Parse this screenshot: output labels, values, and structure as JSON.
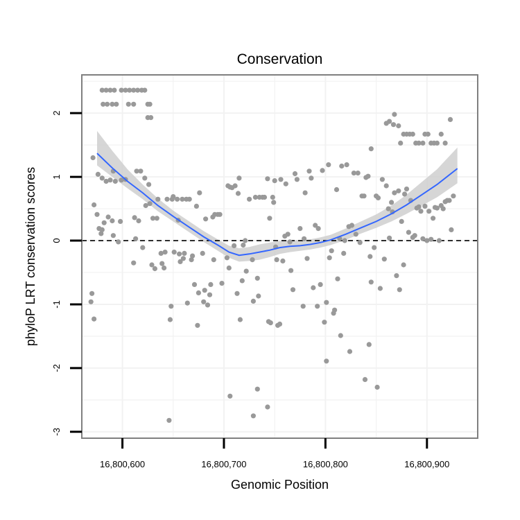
{
  "chart_data": {
    "type": "scatter",
    "title": "Conservation",
    "xlabel": "Genomic Position",
    "ylabel": "phyloP LRT conservation scores",
    "xlim": [
      16800560,
      16800950
    ],
    "ylim": [
      -3.1,
      2.6
    ],
    "x_ticks": [
      16800600,
      16800700,
      16800800,
      16800900
    ],
    "x_tick_labels": [
      "16,800,600",
      "16,800,700",
      "16,800,800",
      "16,800,900"
    ],
    "y_ticks": [
      -3,
      -2,
      -1,
      0,
      1,
      2
    ],
    "y_tick_labels": [
      "-3",
      "-2",
      "-1",
      "0",
      "1",
      "2"
    ],
    "grid": true,
    "reference_line": {
      "y": 0,
      "style": "dashed"
    },
    "colors": {
      "points": "#999999",
      "smooth_line": "#3366ff",
      "ribbon": "#cccccc",
      "grid": "#f2f2f2",
      "panel_border": "#7f7f7f"
    },
    "series": [
      {
        "type": "points",
        "points": [
          [
            16800580,
            2.36
          ],
          [
            16800584,
            2.36
          ],
          [
            16800588,
            2.36
          ],
          [
            16800592,
            2.36
          ],
          [
            16800599,
            2.36
          ],
          [
            16800603,
            2.36
          ],
          [
            16800607,
            2.36
          ],
          [
            16800611,
            2.36
          ],
          [
            16800615,
            2.36
          ],
          [
            16800619,
            2.36
          ],
          [
            16800622,
            2.36
          ],
          [
            16800581,
            2.14
          ],
          [
            16800585,
            2.14
          ],
          [
            16800590,
            2.14
          ],
          [
            16800594,
            2.14
          ],
          [
            16800606,
            2.14
          ],
          [
            16800611,
            2.14
          ],
          [
            16800625,
            2.14
          ],
          [
            16800627,
            2.14
          ],
          [
            16800625,
            1.93
          ],
          [
            16800628,
            1.93
          ],
          [
            16800571,
            1.3
          ],
          [
            16800576,
            1.04
          ],
          [
            16800580,
            0.98
          ],
          [
            16800584,
            0.93
          ],
          [
            16800588,
            0.95
          ],
          [
            16800591,
            1.09
          ],
          [
            16800593,
            0.93
          ],
          [
            16800599,
            0.95
          ],
          [
            16800603,
            0.96
          ],
          [
            16800614,
            1.09
          ],
          [
            16800618,
            1.09
          ],
          [
            16800622,
            0.98
          ],
          [
            16800626,
            0.88
          ],
          [
            16800572,
            0.56
          ],
          [
            16800575,
            0.41
          ],
          [
            16800577,
            0.19
          ],
          [
            16800579,
            0.11
          ],
          [
            16800580,
            0.17
          ],
          [
            16800582,
            0.28
          ],
          [
            16800586,
            0.37
          ],
          [
            16800590,
            0.31
          ],
          [
            16800591,
            0.08
          ],
          [
            16800596,
            -0.02
          ],
          [
            16800598,
            0.3
          ],
          [
            16800612,
            0.36
          ],
          [
            16800613,
            0.03
          ],
          [
            16800616,
            0.31
          ],
          [
            16800620,
            -0.11
          ],
          [
            16800623,
            0.55
          ],
          [
            16800627,
            0.58
          ],
          [
            16800570,
            -0.83
          ],
          [
            16800569,
            -0.96
          ],
          [
            16800572,
            -1.23
          ],
          [
            16800611,
            -0.35
          ],
          [
            16800629,
            -0.38
          ],
          [
            16800630,
            0.35
          ],
          [
            16800632,
            -0.44
          ],
          [
            16800634,
            0.35
          ],
          [
            16800635,
            0.65
          ],
          [
            16800638,
            -0.2
          ],
          [
            16800639,
            -0.36
          ],
          [
            16800641,
            -0.43
          ],
          [
            16800642,
            -0.18
          ],
          [
            16800644,
            0.65
          ],
          [
            16800647,
            -1.24
          ],
          [
            16800648,
            -1.03
          ],
          [
            16800649,
            0.65
          ],
          [
            16800650,
            0.69
          ],
          [
            16800651,
            -0.18
          ],
          [
            16800654,
            0.65
          ],
          [
            16800655,
            0.32
          ],
          [
            16800656,
            -0.21
          ],
          [
            16800657,
            -0.33
          ],
          [
            16800659,
            0.65
          ],
          [
            16800660,
            -0.28
          ],
          [
            16800661,
            -0.2
          ],
          [
            16800663,
            0.65
          ],
          [
            16800664,
            -0.98
          ],
          [
            16800666,
            0.65
          ],
          [
            16800668,
            -0.3
          ],
          [
            16800669,
            -0.24
          ],
          [
            16800671,
            -0.69
          ],
          [
            16800673,
            0.54
          ],
          [
            16800674,
            -1.33
          ],
          [
            16800675,
            -0.82
          ],
          [
            16800676,
            0.75
          ],
          [
            16800679,
            -0.2
          ],
          [
            16800680,
            -0.96
          ],
          [
            16800681,
            -0.78
          ],
          [
            16800682,
            0.34
          ],
          [
            16800684,
            -1.01
          ],
          [
            16800686,
            -0.85
          ],
          [
            16800687,
            -0.69
          ],
          [
            16800689,
            0.37
          ],
          [
            16800690,
            -0.3
          ],
          [
            16800691,
            0.41
          ],
          [
            16800694,
            0.41
          ],
          [
            16800696,
            0.41
          ],
          [
            16800698,
            -0.67
          ],
          [
            16800703,
            -0.27
          ],
          [
            16800704,
            0.86
          ],
          [
            16800705,
            -0.43
          ],
          [
            16800706,
            0.84
          ],
          [
            16800708,
            0.83
          ],
          [
            16800710,
            -0.08
          ],
          [
            16800711,
            0.86
          ],
          [
            16800713,
            -0.83
          ],
          [
            16800714,
            0.74
          ],
          [
            16800715,
            0.98
          ],
          [
            16800716,
            -1.24
          ],
          [
            16800718,
            -0.63
          ],
          [
            16800719,
            -0.07
          ],
          [
            16800721,
            0.0
          ],
          [
            16800722,
            -0.48
          ],
          [
            16800725,
            0.65
          ],
          [
            16800728,
            -0.3
          ],
          [
            16800729,
            -0.95
          ],
          [
            16800731,
            0.68
          ],
          [
            16800733,
            -0.59
          ],
          [
            16800734,
            -0.87
          ],
          [
            16800735,
            0.68
          ],
          [
            16800738,
            0.68
          ],
          [
            16800740,
            0.68
          ],
          [
            16800743,
            0.97
          ],
          [
            16800744,
            -1.27
          ],
          [
            16800745,
            0.35
          ],
          [
            16800746,
            -1.29
          ],
          [
            16800748,
            0.68
          ],
          [
            16800749,
            0.6
          ],
          [
            16800750,
            0.94
          ],
          [
            16800751,
            -0.1
          ],
          [
            16800752,
            -0.3
          ],
          [
            16800753,
            -1.33
          ],
          [
            16800755,
            -1.31
          ],
          [
            16800756,
            0.96
          ],
          [
            16800758,
            -0.32
          ],
          [
            16800760,
            0.07
          ],
          [
            16800761,
            0.89
          ],
          [
            16800763,
            0.1
          ],
          [
            16800765,
            -0.02
          ],
          [
            16800766,
            -0.47
          ],
          [
            16800768,
            -0.77
          ],
          [
            16800770,
            1.05
          ],
          [
            16800772,
            0.96
          ],
          [
            16800775,
            0.19
          ],
          [
            16800778,
            -1.03
          ],
          [
            16800779,
            0.03
          ],
          [
            16800780,
            0.75
          ],
          [
            16800782,
            -0.28
          ],
          [
            16800784,
            1.09
          ],
          [
            16800786,
            0.98
          ],
          [
            16800788,
            -0.74
          ],
          [
            16800790,
            0.24
          ],
          [
            16800792,
            -1.03
          ],
          [
            16800793,
            0.19
          ],
          [
            16800795,
            -0.69
          ],
          [
            16800797,
            1.1
          ],
          [
            16800799,
            -1.28
          ],
          [
            16800801,
            -0.97
          ],
          [
            16800803,
            1.19
          ],
          [
            16800804,
            -0.27
          ],
          [
            16800806,
            -0.16
          ],
          [
            16800808,
            -1.14
          ],
          [
            16800809,
            -1.09
          ],
          [
            16800811,
            0.8
          ],
          [
            16800812,
            -0.6
          ],
          [
            16800814,
            0.03
          ],
          [
            16800816,
            1.17
          ],
          [
            16800818,
            -0.2
          ],
          [
            16800819,
            0.0
          ],
          [
            16800821,
            1.19
          ],
          [
            16800823,
            0.22
          ],
          [
            16800826,
            0.24
          ],
          [
            16800828,
            1.06
          ],
          [
            16800830,
            0.1
          ],
          [
            16800832,
            1.06
          ],
          [
            16800834,
            -0.03
          ],
          [
            16800836,
            0.7
          ],
          [
            16800838,
            0.7
          ],
          [
            16800840,
            0.99
          ],
          [
            16800842,
            1.01
          ],
          [
            16800844,
            -0.25
          ],
          [
            16800845,
            -0.65
          ],
          [
            16800848,
            -0.11
          ],
          [
            16800850,
            0.7
          ],
          [
            16800852,
            0.67
          ],
          [
            16800854,
            -0.75
          ],
          [
            16800856,
            0.96
          ],
          [
            16800858,
            -0.29
          ],
          [
            16800860,
            0.86
          ],
          [
            16800862,
            0.5
          ],
          [
            16800863,
            0.04
          ],
          [
            16800865,
            0.6
          ],
          [
            16800866,
            0.45
          ],
          [
            16800868,
            0.75
          ],
          [
            16800870,
            -0.55
          ],
          [
            16800872,
            0.78
          ],
          [
            16800873,
            -0.77
          ],
          [
            16800875,
            0.3
          ],
          [
            16800877,
            -0.38
          ],
          [
            16800878,
            0.73
          ],
          [
            16800880,
            0.81
          ],
          [
            16800882,
            0.13
          ],
          [
            16800884,
            0.63
          ],
          [
            16800886,
            0.05
          ],
          [
            16800888,
            0.08
          ],
          [
            16800890,
            0.51
          ],
          [
            16800892,
            0.53
          ],
          [
            16800894,
            0.46
          ],
          [
            16800896,
            0.03
          ],
          [
            16800898,
            0.54
          ],
          [
            16800900,
            0.0
          ],
          [
            16800902,
            0.46
          ],
          [
            16800904,
            0.02
          ],
          [
            16800906,
            0.35
          ],
          [
            16800908,
            0.52
          ],
          [
            16800910,
            0.51
          ],
          [
            16800912,
            0.0
          ],
          [
            16800914,
            0.55
          ],
          [
            16800916,
            0.5
          ],
          [
            16800918,
            0.61
          ],
          [
            16800920,
            0.63
          ],
          [
            16800922,
            0.63
          ],
          [
            16800924,
            0.17
          ],
          [
            16800926,
            0.7
          ],
          [
            16800729,
            -2.75
          ],
          [
            16800733,
            -2.33
          ],
          [
            16800743,
            -2.61
          ],
          [
            16800801,
            -1.89
          ],
          [
            16800815,
            -1.49
          ],
          [
            16800824,
            -1.74
          ],
          [
            16800839,
            -2.18
          ],
          [
            16800843,
            -1.63
          ],
          [
            16800851,
            -2.3
          ],
          [
            16800646,
            -2.82
          ],
          [
            16800706,
            -2.44
          ],
          [
            16800845,
            1.44
          ],
          [
            16800860,
            1.84
          ],
          [
            16800863,
            1.87
          ],
          [
            16800867,
            1.82
          ],
          [
            16800868,
            1.98
          ],
          [
            16800872,
            1.8
          ],
          [
            16800874,
            1.53
          ],
          [
            16800877,
            1.67
          ],
          [
            16800880,
            1.67
          ],
          [
            16800883,
            1.67
          ],
          [
            16800886,
            1.67
          ],
          [
            16800889,
            1.53
          ],
          [
            16800892,
            1.53
          ],
          [
            16800896,
            1.53
          ],
          [
            16800898,
            1.67
          ],
          [
            16800901,
            1.67
          ],
          [
            16800904,
            1.53
          ],
          [
            16800907,
            1.53
          ],
          [
            16800910,
            1.53
          ],
          [
            16800914,
            1.67
          ],
          [
            16800918,
            1.53
          ],
          [
            16800923,
            1.9
          ]
        ]
      },
      {
        "type": "smooth",
        "x": [
          16800575,
          16800590,
          16800605,
          16800620,
          16800635,
          16800650,
          16800665,
          16800680,
          16800695,
          16800705,
          16800715,
          16800725,
          16800735,
          16800745,
          16800755,
          16800765,
          16800775,
          16800785,
          16800795,
          16800805,
          16800820,
          16800835,
          16800850,
          16800865,
          16800880,
          16800895,
          16800910,
          16800930
        ],
        "y": [
          1.37,
          1.14,
          0.93,
          0.75,
          0.55,
          0.38,
          0.22,
          0.06,
          -0.08,
          -0.18,
          -0.23,
          -0.21,
          -0.18,
          -0.15,
          -0.11,
          -0.09,
          -0.08,
          -0.06,
          -0.03,
          0.01,
          0.1,
          0.2,
          0.3,
          0.42,
          0.56,
          0.72,
          0.88,
          1.13
        ],
        "lower": [
          1.18,
          1.0,
          0.82,
          0.65,
          0.46,
          0.3,
          0.14,
          -0.02,
          -0.17,
          -0.27,
          -0.33,
          -0.32,
          -0.3,
          -0.26,
          -0.21,
          -0.18,
          -0.16,
          -0.14,
          -0.11,
          -0.07,
          0.01,
          0.11,
          0.2,
          0.3,
          0.42,
          0.55,
          0.68,
          0.9
        ],
        "upper": [
          1.72,
          1.41,
          1.12,
          0.88,
          0.66,
          0.47,
          0.31,
          0.15,
          0.01,
          -0.08,
          -0.12,
          -0.1,
          -0.06,
          -0.03,
          -0.01,
          0.0,
          0.01,
          0.02,
          0.05,
          0.09,
          0.19,
          0.3,
          0.41,
          0.55,
          0.72,
          0.92,
          1.12,
          1.46
        ]
      }
    ]
  }
}
